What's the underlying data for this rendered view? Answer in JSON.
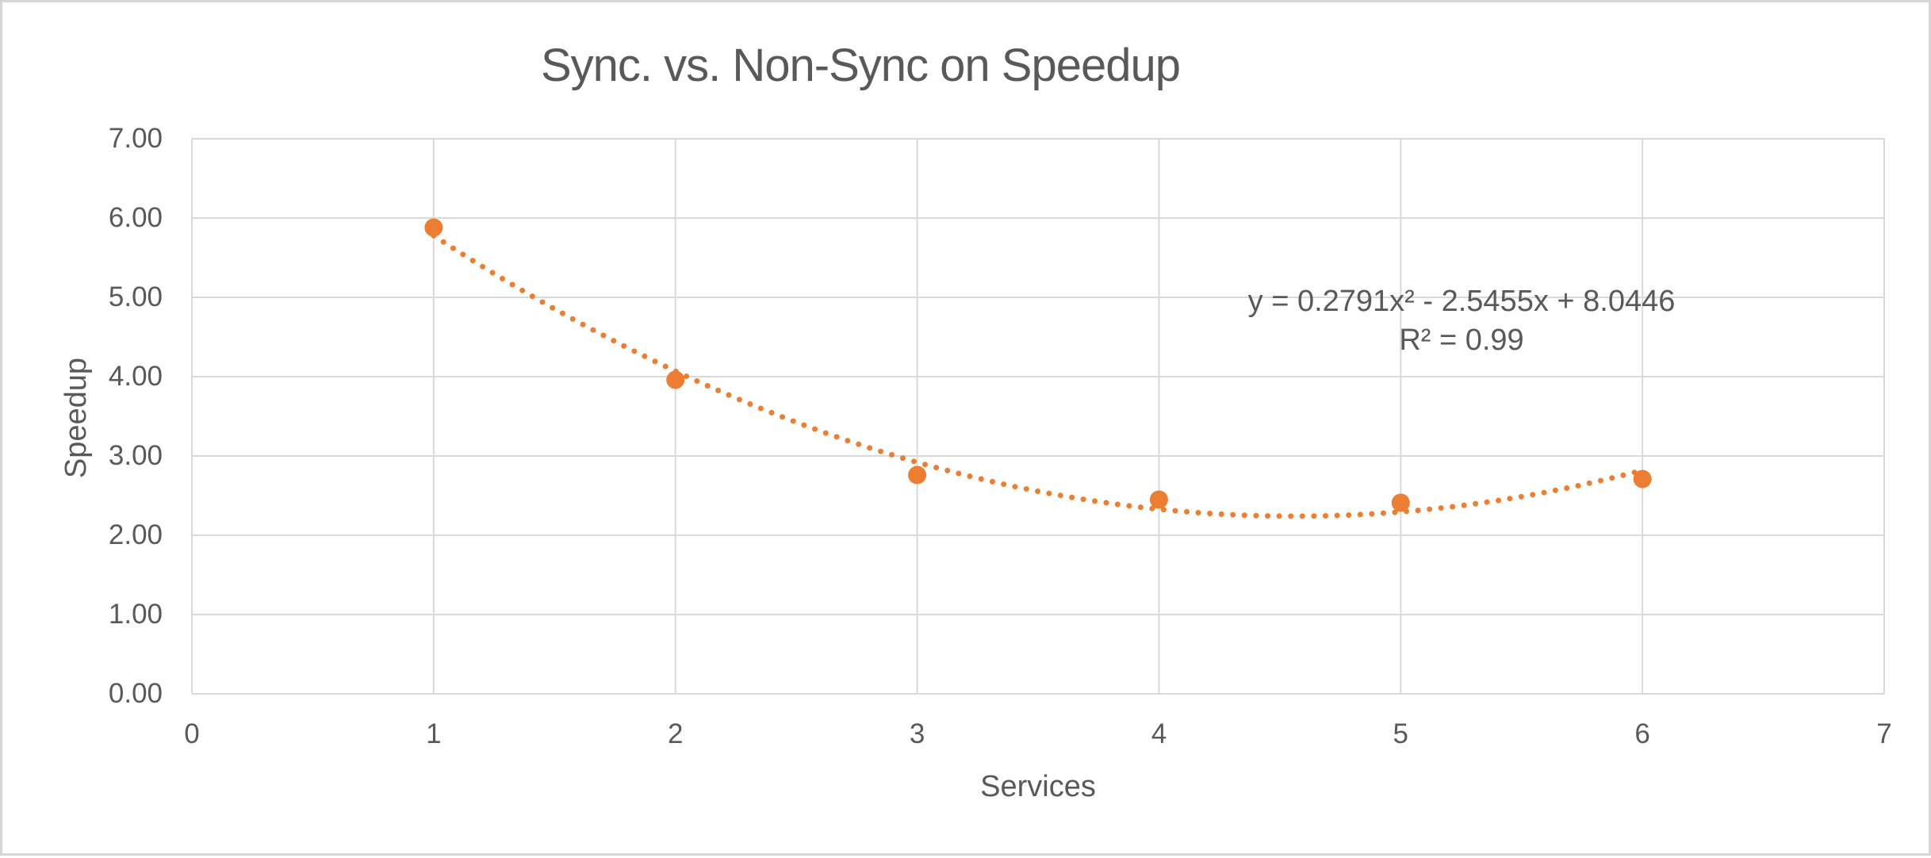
{
  "chart_data": {
    "type": "scatter",
    "title": "Sync. vs. Non-Sync on Speedup",
    "xlabel": "Services",
    "ylabel": "Speedup",
    "x": [
      1,
      2,
      3,
      4,
      5,
      6
    ],
    "y": [
      5.88,
      3.96,
      2.76,
      2.45,
      2.41,
      2.71
    ],
    "xlim": [
      0,
      7
    ],
    "ylim": [
      0,
      7
    ],
    "x_ticks": [
      "0",
      "1",
      "2",
      "3",
      "4",
      "5",
      "6",
      "7"
    ],
    "y_ticks": [
      "0.00",
      "1.00",
      "2.00",
      "3.00",
      "4.00",
      "5.00",
      "6.00",
      "7.00"
    ],
    "grid": true,
    "legend": "none",
    "trendline": {
      "kind": "polynomial",
      "order": 2,
      "coefficients": {
        "a": 0.2791,
        "b": -2.5455,
        "c": 8.0446
      },
      "equation_label": "y = 0.2791x² - 2.5455x + 8.0446",
      "r_squared_label": "R² = 0.99",
      "style": "dotted",
      "annotation_position": "center-right"
    },
    "colors": {
      "marker": "#ED7D31",
      "trendline": "#ED7D31",
      "gridline": "#D9D9D9",
      "text": "#595959",
      "frame_border": "#D6D6D6",
      "background": "#FFFFFF"
    }
  }
}
